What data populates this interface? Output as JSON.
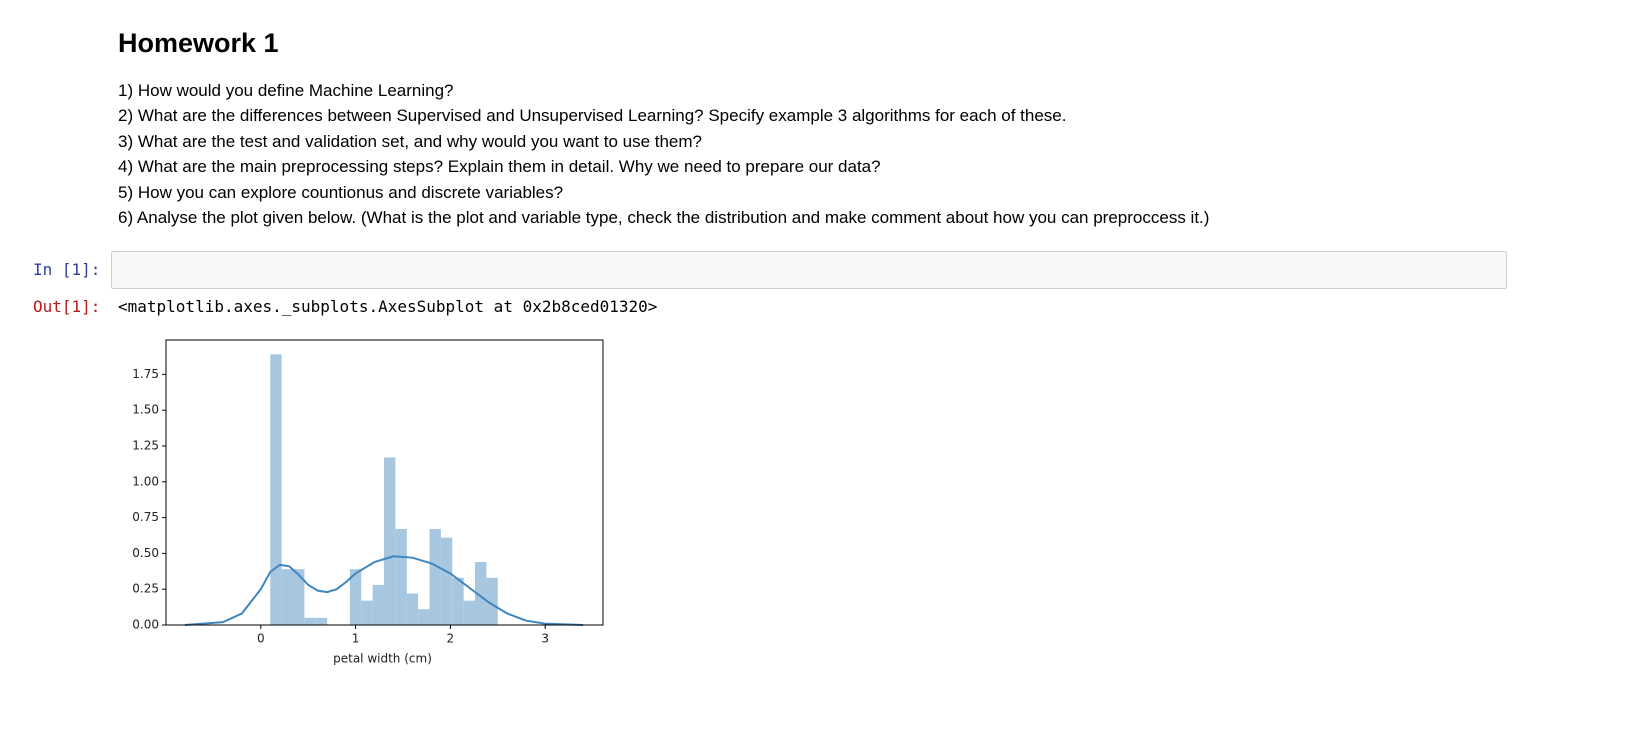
{
  "header": {
    "title": "Homework 1"
  },
  "questions": [
    "1) How would you define Machine Learning?",
    "2) What are the differences between Supervised and Unsupervised Learning? Specify example 3 algorithms for each of these.",
    "3) What are the test and validation set, and why would you want to use them?",
    "4) What are the main preprocessing steps? Explain them in detail. Why we need to prepare our data?",
    "5) How you can explore countionus and discrete variables?",
    "6) Analyse the plot given below. (What is the plot and variable type, check the distribution and make comment about how you can preproccess it.)"
  ],
  "cells": [
    {
      "prompt": "In [1]:"
    },
    {
      "prompt": "Out[1]:",
      "text": "<matplotlib.axes._subplots.AxesSubplot at 0x2b8ced01320>"
    }
  ],
  "chart_data": {
    "type": "histogram",
    "xlabel": "petal width (cm)",
    "bins": [
      0.1,
      0.22,
      0.34,
      0.46,
      0.58,
      0.7,
      0.82,
      0.94,
      1.06,
      1.18,
      1.3,
      1.42,
      1.54,
      1.66,
      1.78,
      1.9,
      2.02,
      2.14,
      2.26,
      2.38,
      2.5
    ],
    "values": [
      1.89,
      0.39,
      0.39,
      0.05,
      0.05,
      0,
      0,
      0.39,
      0.17,
      0.28,
      1.17,
      0.67,
      0.22,
      0.11,
      0.67,
      0.61,
      0.33,
      0.17,
      0.44,
      0.33
    ],
    "color": "#a7c7e0",
    "kde": {
      "color": "#3f86c0",
      "x": [
        -0.8,
        -0.4,
        -0.2,
        0,
        0.1,
        0.2,
        0.3,
        0.4,
        0.5,
        0.6,
        0.7,
        0.8,
        0.9,
        1.0,
        1.2,
        1.4,
        1.6,
        1.8,
        2.0,
        2.2,
        2.4,
        2.6,
        2.8,
        3.0,
        3.4
      ],
      "y": [
        0.0,
        0.02,
        0.08,
        0.25,
        0.37,
        0.42,
        0.41,
        0.35,
        0.28,
        0.24,
        0.23,
        0.25,
        0.3,
        0.36,
        0.44,
        0.48,
        0.47,
        0.43,
        0.36,
        0.26,
        0.16,
        0.08,
        0.03,
        0.01,
        0.0
      ]
    },
    "xlim": [
      -1.0,
      3.61
    ],
    "ylim": [
      0,
      1.99
    ],
    "xticks": [
      0,
      1,
      2,
      3
    ],
    "yticks": [
      {
        "value": 0,
        "label": "0.00"
      },
      0.25,
      {
        "value": 0.5,
        "label": "0.50"
      },
      0.75,
      {
        "value": 1,
        "label": "1.00"
      },
      1.25,
      {
        "value": 1.5,
        "label": "1.50"
      },
      1.75
    ]
  }
}
